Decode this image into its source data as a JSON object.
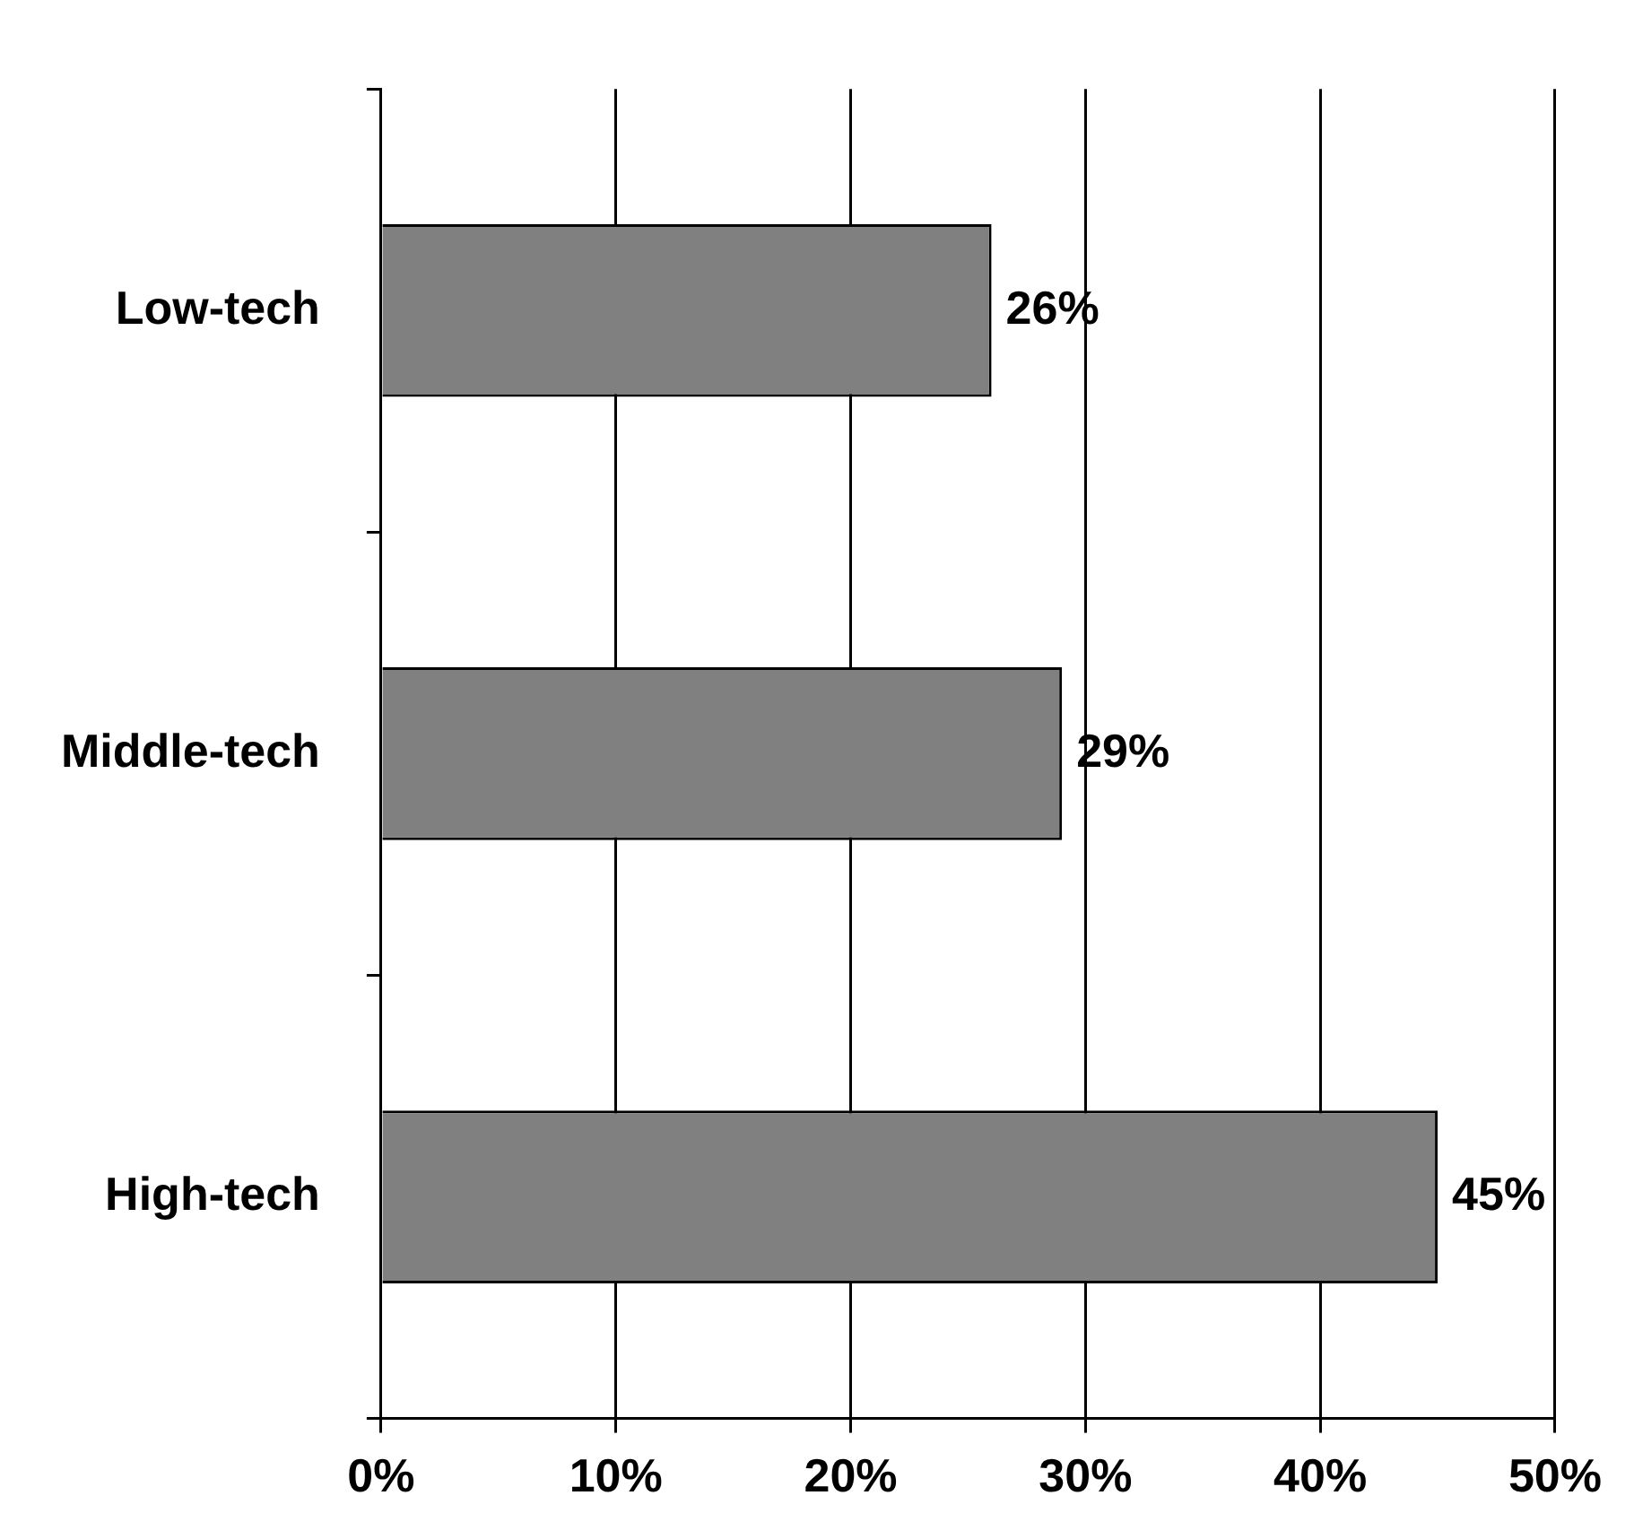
{
  "chart_data": {
    "type": "bar",
    "orientation": "horizontal",
    "categories": [
      "Low-tech",
      "Middle-tech",
      "High-tech"
    ],
    "values": [
      26,
      29,
      45
    ],
    "value_labels": [
      "26%",
      "29%",
      "45%"
    ],
    "color": "#808080",
    "xlim": [
      0,
      50
    ],
    "xticks": [
      {
        "value": 0,
        "label": "0%"
      },
      {
        "value": 10,
        "label": "10%"
      },
      {
        "value": 20,
        "label": "20%"
      },
      {
        "value": 30,
        "label": "30%"
      },
      {
        "value": 40,
        "label": "40%"
      },
      {
        "value": 50,
        "label": "50%"
      }
    ],
    "grid": "x",
    "legend": false
  }
}
